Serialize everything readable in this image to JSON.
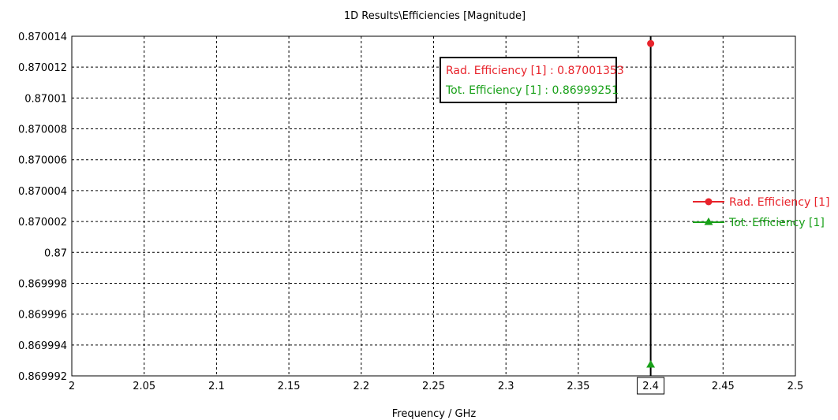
{
  "chart_data": {
    "type": "line",
    "title": "1D Results\\Efficiencies [Magnitude]",
    "xlabel": "Frequency / GHz",
    "ylabel": "",
    "xlim": [
      2,
      2.5
    ],
    "ylim": [
      0.869992,
      0.870014
    ],
    "x_ticks": [
      "2",
      "2.05",
      "2.1",
      "2.15",
      "2.2",
      "2.25",
      "2.3",
      "2.35",
      "2.4",
      "2.45",
      "2.5"
    ],
    "y_ticks": [
      "0.870014",
      "0.870012",
      "0.87001",
      "0.870008",
      "0.870006",
      "0.870004",
      "0.870002",
      "0.87",
      "0.869998",
      "0.869996",
      "0.869994",
      "0.869992"
    ],
    "grid": true,
    "legend_position": "right",
    "marker_x": "2.4",
    "series": [
      {
        "name": "Rad. Efficiency [1]",
        "color": "#e8232b",
        "marker": "circle",
        "x": [
          2.4
        ],
        "y": [
          0.87001353
        ]
      },
      {
        "name": "Tot. Efficiency [1]",
        "color": "#18a018",
        "marker": "triangle",
        "x": [
          2.4
        ],
        "y": [
          0.86999251
        ]
      }
    ],
    "annotations": [
      {
        "text": "Rad. Efficiency [1] : 0.87001353",
        "color": "#e8232b"
      },
      {
        "text": "Tot. Efficiency [1] : 0.86999251",
        "color": "#18a018"
      }
    ]
  }
}
